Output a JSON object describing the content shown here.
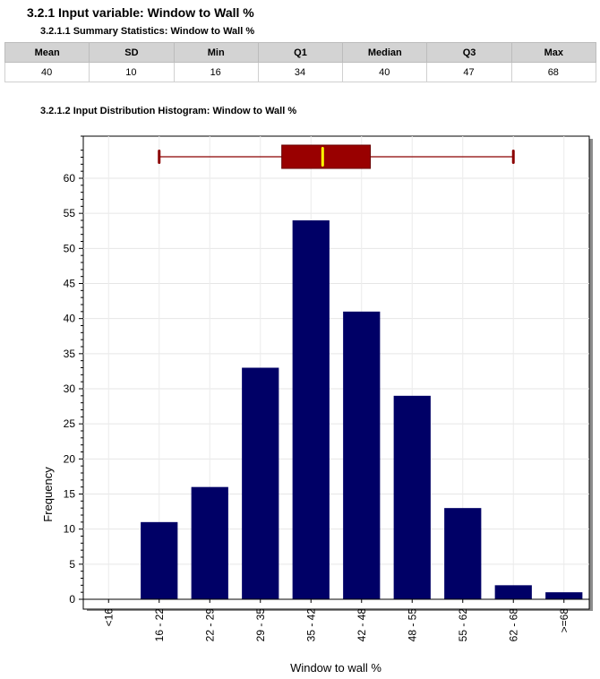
{
  "section": {
    "title": "3.2.1 Input variable: Window to Wall %",
    "stats_heading": "3.2.1.1 Summary Statistics: Window to Wall %",
    "hist_heading": "3.2.1.2 Input Distribution Histogram: Window to Wall %"
  },
  "stats": {
    "headers": [
      "Mean",
      "SD",
      "Min",
      "Q1",
      "Median",
      "Q3",
      "Max"
    ],
    "values": [
      "40",
      "10",
      "16",
      "34",
      "40",
      "47",
      "68"
    ]
  },
  "chart_data": {
    "type": "bar",
    "categories": [
      "<16",
      "16 - 22",
      "22 - 29",
      "29 - 35",
      "35 - 42",
      "42 - 48",
      "48 - 55",
      "55 - 62",
      "62 - 68",
      ">=68"
    ],
    "values": [
      0,
      11,
      16,
      33,
      54,
      41,
      29,
      13,
      2,
      1
    ],
    "xlabel": "Window to wall %",
    "ylabel": "Frequency",
    "ylim": [
      0,
      66
    ],
    "yticks": [
      0,
      5,
      10,
      15,
      20,
      25,
      30,
      35,
      40,
      45,
      50,
      55,
      60
    ],
    "grid": true,
    "boxplot": {
      "min": 16,
      "q1": 34,
      "median": 40,
      "q3": 47,
      "max": 68
    },
    "colors": {
      "bar": "#000066",
      "box": "#990000",
      "median": "#ffff00",
      "whisker": "#8b0000"
    }
  }
}
